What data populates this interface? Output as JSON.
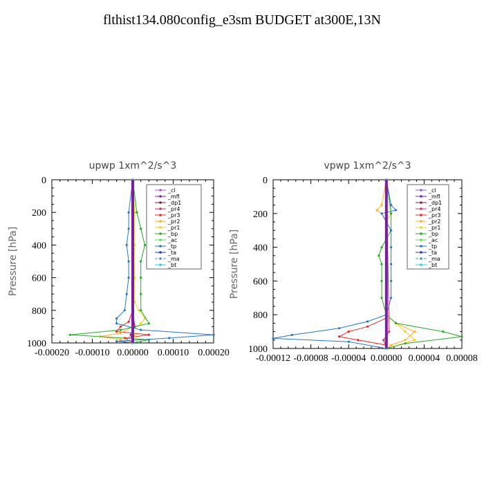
{
  "title": "flthist134.080config_e3sm  BUDGET at300E,13N",
  "chart_data": [
    {
      "type": "line",
      "title": "upwp   1xm^2/s^3",
      "ylabel": "Pressure [hPa]",
      "xlim": [
        -0.0002,
        0.0002
      ],
      "ylim": [
        1000,
        0
      ],
      "xticks": [
        "-0.00020",
        "-0.00010",
        "0.00000",
        "0.00010",
        "0.00020"
      ],
      "xtick_values": [
        -0.0002,
        -0.0001,
        0,
        0.0001,
        0.0002
      ],
      "yticks": [
        "0",
        "200",
        "400",
        "600",
        "800",
        "1000"
      ],
      "ytick_values": [
        0,
        200,
        400,
        600,
        800,
        1000
      ],
      "legend_loc": "top-right",
      "series": [
        {
          "name": "_cl",
          "color": "#9b59d0",
          "p": [
            0,
            1000
          ],
          "values": [
            0,
            0
          ]
        },
        {
          "name": "_mfl",
          "color": "#7a1fa2",
          "p": [
            0,
            1000
          ],
          "values": [
            0,
            0
          ]
        },
        {
          "name": "_dp1",
          "color": "#7a1a5a",
          "p": [
            0,
            200,
            400,
            600,
            800,
            900,
            950,
            1000
          ],
          "values": [
            0,
            0,
            0,
            0,
            0,
            5e-06,
            -5e-06,
            0
          ]
        },
        {
          "name": "_pr4",
          "color": "#d0306a",
          "p": [
            0,
            200,
            400,
            600,
            800,
            900,
            950,
            1000
          ],
          "values": [
            0,
            0,
            0,
            0,
            0,
            5e-06,
            -3e-06,
            0
          ]
        },
        {
          "name": "_pr3",
          "color": "#ee2222",
          "p": [
            0,
            800,
            870,
            900,
            930,
            950,
            970,
            1000
          ],
          "values": [
            0,
            0,
            -1e-05,
            -3e-05,
            -4e-05,
            4e-05,
            -2e-05,
            0
          ]
        },
        {
          "name": "_pr2",
          "color": "#ffaa22",
          "p": [
            0,
            800,
            900,
            940,
            960,
            980,
            1000
          ],
          "values": [
            0,
            0,
            0,
            -3e-05,
            -8e-05,
            -3e-05,
            0
          ]
        },
        {
          "name": "_pr1",
          "color": "#e8d020",
          "p": [
            0,
            200,
            400,
            600,
            750,
            800,
            850,
            880,
            920,
            950,
            1000
          ],
          "values": [
            0,
            5e-06,
            5e-06,
            5e-06,
            5e-06,
            1.5e-05,
            3e-05,
            2e-05,
            0,
            5e-06,
            0
          ]
        },
        {
          "name": "_bp",
          "color": "#22aa22",
          "p": [
            0,
            200,
            300,
            400,
            500,
            600,
            700,
            800,
            880,
            920,
            950,
            980,
            1000
          ],
          "values": [
            0,
            1e-05,
            2e-05,
            3e-05,
            2e-05,
            2e-05,
            2e-05,
            2e-05,
            4e-05,
            -3e-05,
            -0.000155,
            4e-05,
            0
          ]
        },
        {
          "name": "_ac",
          "color": "#55dd55",
          "p": [
            0,
            1000
          ],
          "values": [
            0,
            0
          ]
        },
        {
          "name": "_tp",
          "color": "#2277cc",
          "p": [
            0,
            200,
            300,
            400,
            500,
            600,
            700,
            800,
            850,
            880,
            920,
            950,
            970,
            990,
            1000
          ],
          "values": [
            0,
            -1e-05,
            -1e-05,
            -1.5e-05,
            -1e-05,
            -1e-05,
            -1.5e-05,
            -2e-05,
            -4e-05,
            -4e-05,
            2e-05,
            0.0002,
            9e-05,
            -4e-05,
            0
          ]
        },
        {
          "name": "_ta",
          "color": "#2233bb",
          "p": [
            0,
            1000
          ],
          "values": [
            0,
            0
          ]
        },
        {
          "name": "_ma",
          "color": "#4a8fd0",
          "p": [
            0,
            1000
          ],
          "values": [
            0,
            0
          ]
        },
        {
          "name": "_bt",
          "color": "#22ccdd",
          "p": [
            0,
            1000
          ],
          "values": [
            0,
            0
          ]
        }
      ]
    },
    {
      "type": "line",
      "title": "vpwp   1xm^2/s^3",
      "ylabel": "Pressure [hPa]",
      "xlim": [
        -0.00012,
        8e-05
      ],
      "ylim": [
        1000,
        0
      ],
      "xticks": [
        "-0.00012",
        "-0.00008",
        "-0.00004",
        "0.00000",
        "0.00004",
        "0.00008"
      ],
      "xtick_values": [
        -0.00012,
        -8e-05,
        -4e-05,
        0,
        4e-05,
        8e-05
      ],
      "yticks": [
        "0",
        "200",
        "400",
        "600",
        "800",
        "1000"
      ],
      "ytick_values": [
        0,
        200,
        400,
        600,
        800,
        1000
      ],
      "legend_loc": "top-right",
      "series": [
        {
          "name": "_cl",
          "color": "#9b59d0",
          "p": [
            0,
            1000
          ],
          "values": [
            0,
            0
          ]
        },
        {
          "name": "_mfl",
          "color": "#7a1fa2",
          "p": [
            0,
            1000
          ],
          "values": [
            0,
            0
          ]
        },
        {
          "name": "_dp1",
          "color": "#7a1a5a",
          "p": [
            0,
            1000
          ],
          "values": [
            0,
            0
          ]
        },
        {
          "name": "_pr4",
          "color": "#d0306a",
          "p": [
            0,
            900,
            950,
            1000
          ],
          "values": [
            0,
            3e-06,
            -3e-06,
            0
          ]
        },
        {
          "name": "_pr3",
          "color": "#ee2222",
          "p": [
            0,
            820,
            870,
            900,
            930,
            950,
            980,
            1000
          ],
          "values": [
            0,
            0,
            -2e-05,
            -4e-05,
            -5e-05,
            -3e-05,
            0,
            0
          ]
        },
        {
          "name": "_pr2",
          "color": "#ffaa22",
          "p": [
            0,
            150,
            180,
            200,
            250,
            800,
            850,
            900,
            950,
            980,
            1000
          ],
          "values": [
            0,
            -5e-06,
            -1e-05,
            -5e-06,
            0,
            0,
            1e-05,
            3e-05,
            2e-05,
            5e-06,
            0
          ]
        },
        {
          "name": "_pr1",
          "color": "#e8d020",
          "p": [
            0,
            150,
            200,
            250,
            800,
            850,
            900,
            950,
            1000
          ],
          "values": [
            0,
            5e-06,
            5e-06,
            0,
            0,
            1e-05,
            2e-05,
            3e-05,
            0
          ]
        },
        {
          "name": "_bp",
          "color": "#22aa22",
          "p": [
            0,
            200,
            300,
            400,
            450,
            500,
            600,
            700,
            800,
            850,
            900,
            930,
            970,
            1000
          ],
          "values": [
            0,
            5e-06,
            5e-06,
            -5e-06,
            -8e-06,
            -5e-06,
            -5e-06,
            -5e-06,
            0,
            1e-05,
            6e-05,
            8e-05,
            2e-05,
            0
          ]
        },
        {
          "name": "_ac",
          "color": "#55dd55",
          "p": [
            0,
            1000
          ],
          "values": [
            0,
            0
          ]
        },
        {
          "name": "_tp",
          "color": "#2277cc",
          "p": [
            0,
            150,
            180,
            200,
            250,
            300,
            400,
            500,
            600,
            700,
            800,
            840,
            880,
            920,
            940,
            960,
            1000
          ],
          "values": [
            0,
            5e-06,
            1e-05,
            -5e-06,
            0,
            5e-06,
            5e-06,
            5e-06,
            5e-06,
            5e-06,
            0,
            -2e-05,
            -5e-05,
            -0.0001,
            -0.00012,
            -4e-05,
            0
          ]
        },
        {
          "name": "_ta",
          "color": "#2233bb",
          "p": [
            0,
            1000
          ],
          "values": [
            0,
            0
          ]
        },
        {
          "name": "_ma",
          "color": "#4a8fd0",
          "p": [
            0,
            1000
          ],
          "values": [
            0,
            0
          ]
        },
        {
          "name": "_bt",
          "color": "#22ccdd",
          "p": [
            0,
            1000
          ],
          "values": [
            0,
            0
          ]
        }
      ]
    }
  ]
}
